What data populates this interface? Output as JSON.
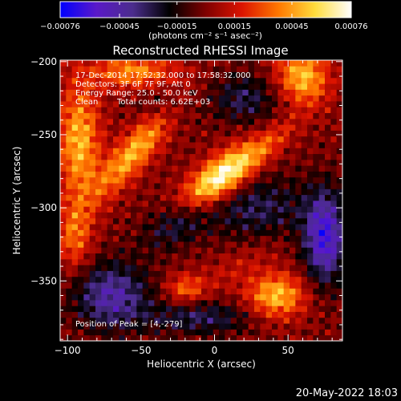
{
  "chart_data": {
    "type": "heatmap",
    "title": "Reconstructed RHESSI Image",
    "xlabel": "Heliocentric X (arcsec)",
    "ylabel": "Heliocentric Y (arcsec)",
    "xlim": [
      -105,
      87
    ],
    "ylim": [
      -391,
      -199
    ],
    "x_ticks": [
      -100,
      -50,
      0,
      50
    ],
    "y_ticks": [
      -200,
      -250,
      -300,
      -350
    ],
    "x_tick_labels": [
      "−100",
      "−50",
      "0",
      "50"
    ],
    "y_tick_labels": [
      "−200",
      "−250",
      "−300",
      "−350"
    ],
    "colorbar": {
      "min": -0.00076,
      "max": 0.00076,
      "tick_values": [
        -0.00076,
        -0.00045,
        -0.00015,
        0.00015,
        0.00045,
        0.00076
      ],
      "tick_labels": [
        "−0.00076",
        "−0.00045",
        "−0.00015",
        "0.00015",
        "0.00045",
        "0.00076"
      ],
      "unit_label": "(photons cm⁻² s⁻¹ asec⁻²)",
      "colors": [
        "#0000ff",
        "#5a19c8",
        "#4b2d8c",
        "#000000",
        "#7f0000",
        "#dc1400",
        "#ff7800",
        "#ffdc3c",
        "#ffffff"
      ]
    },
    "annotations": {
      "time": "17-Dec-2014 17:52:32.000 to 17:58:32.000",
      "detectors": "Detectors: 3F 6F 7F 9F, Att 0",
      "energy": "Energy Range: 25.0 - 50.0 keV",
      "method": "Clean",
      "counts": "Total counts: 6.62E+03",
      "peak": "Position of Peak = [4,-279]"
    },
    "peak": {
      "x": 4,
      "y": -279,
      "value": 0.00076
    },
    "sources": [
      {
        "x": 4,
        "y": -279,
        "sx": 22,
        "sy": 9,
        "rot_deg": -38,
        "amp": 0.00078
      },
      {
        "x": -55,
        "y": -262,
        "sx": 28,
        "sy": 8,
        "rot_deg": -50,
        "amp": 0.0005
      },
      {
        "x": -92,
        "y": -255,
        "sx": 10,
        "sy": 28,
        "rot_deg": 0,
        "amp": 0.0005
      },
      {
        "x": -55,
        "y": -207,
        "sx": 20,
        "sy": 8,
        "rot_deg": 0,
        "amp": 0.00042
      },
      {
        "x": 60,
        "y": -210,
        "sx": 12,
        "sy": 14,
        "rot_deg": -20,
        "amp": 0.00052
      },
      {
        "x": 42,
        "y": -360,
        "sx": 14,
        "sy": 11,
        "rot_deg": 0,
        "amp": 0.00052
      },
      {
        "x": -20,
        "y": -355,
        "sx": 9,
        "sy": 7,
        "rot_deg": 0,
        "amp": 0.0003
      },
      {
        "x": -95,
        "y": -320,
        "sx": 8,
        "sy": 16,
        "rot_deg": 0,
        "amp": 0.00032
      },
      {
        "x": 38,
        "y": -255,
        "sx": 18,
        "sy": 6,
        "rot_deg": -40,
        "amp": 0.0002
      },
      {
        "x": 15,
        "y": -340,
        "sx": 26,
        "sy": 8,
        "rot_deg": -30,
        "amp": 0.00012
      },
      {
        "x": 30,
        "y": -300,
        "sx": 24,
        "sy": 16,
        "rot_deg": 0,
        "amp": -0.00028
      },
      {
        "x": 75,
        "y": -320,
        "sx": 10,
        "sy": 22,
        "rot_deg": 0,
        "amp": -0.0006
      },
      {
        "x": -70,
        "y": -360,
        "sx": 18,
        "sy": 16,
        "rot_deg": 0,
        "amp": -0.00045
      },
      {
        "x": -25,
        "y": -310,
        "sx": 18,
        "sy": 10,
        "rot_deg": -30,
        "amp": -0.0003
      },
      {
        "x": 20,
        "y": -225,
        "sx": 16,
        "sy": 12,
        "rot_deg": 0,
        "amp": -0.00028
      },
      {
        "x": -10,
        "y": -375,
        "sx": 26,
        "sy": 8,
        "rot_deg": 0,
        "amp": -0.0003
      },
      {
        "x": -35,
        "y": -230,
        "sx": 12,
        "sy": 10,
        "rot_deg": 0,
        "amp": -0.00015
      }
    ]
  },
  "footer": {
    "timestamp": "20-May-2022 18:03"
  }
}
